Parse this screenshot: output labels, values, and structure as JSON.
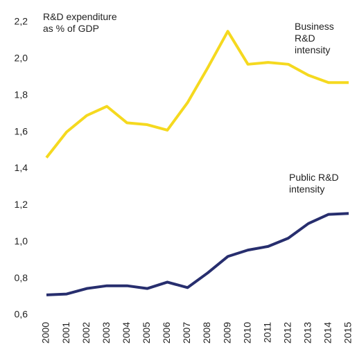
{
  "chart_data": {
    "type": "line",
    "title": "R&D expenditure as % of GDP",
    "categories": [
      "2000",
      "2001",
      "2002",
      "2003",
      "2004",
      "2005",
      "2006",
      "2007",
      "2008",
      "2009",
      "2010",
      "2011",
      "2012",
      "2013",
      "2014",
      "2015"
    ],
    "series": [
      {
        "name": "Business R&D intensity",
        "color": "#f5d91f",
        "values": [
          1.46,
          1.6,
          1.69,
          1.74,
          1.65,
          1.64,
          1.61,
          1.76,
          1.95,
          2.15,
          1.97,
          1.98,
          1.97,
          1.91,
          1.87,
          1.87
        ]
      },
      {
        "name": "Public R&D intensity",
        "color": "#272e6e",
        "values": [
          0.71,
          0.715,
          0.745,
          0.76,
          0.76,
          0.745,
          0.78,
          0.75,
          0.83,
          0.92,
          0.955,
          0.975,
          1.02,
          1.1,
          1.15,
          1.155
        ]
      }
    ],
    "ylim": [
      0.6,
      2.2
    ],
    "yticks": [
      {
        "value": 0.6,
        "label": "0,6"
      },
      {
        "value": 0.8,
        "label": "0,8"
      },
      {
        "value": 1.0,
        "label": "1,0"
      },
      {
        "value": 1.2,
        "label": "1,2"
      },
      {
        "value": 1.4,
        "label": "1,4"
      },
      {
        "value": 1.6,
        "label": "1,6"
      },
      {
        "value": 1.8,
        "label": "1,8"
      },
      {
        "value": 2.0,
        "label": "2,0"
      },
      {
        "value": 2.2,
        "label": "2,2"
      }
    ],
    "grid": false
  }
}
